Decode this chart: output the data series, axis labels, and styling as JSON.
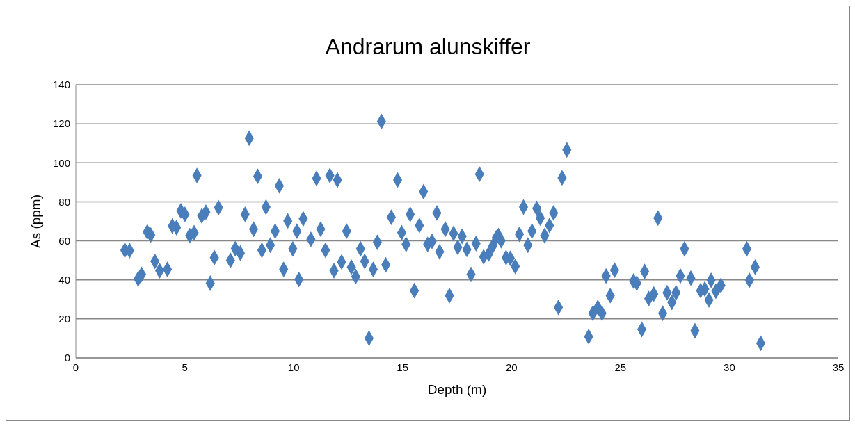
{
  "chart_data": {
    "type": "scatter",
    "title": "Andrarum alunskiffer",
    "xlabel": "Depth (m)",
    "ylabel": "As (ppm)",
    "x": [
      2.25,
      2.47,
      2.86,
      3.02,
      3.28,
      3.44,
      3.63,
      3.85,
      4.2,
      4.43,
      4.62,
      4.82,
      5.01,
      5.23,
      5.43,
      5.56,
      5.78,
      5.97,
      6.17,
      6.36,
      6.55,
      7.1,
      7.32,
      7.55,
      7.77,
      7.96,
      8.16,
      8.35,
      8.54,
      8.73,
      8.93,
      9.15,
      9.34,
      9.54,
      9.73,
      9.96,
      10.15,
      10.24,
      10.44,
      10.79,
      11.05,
      11.24,
      11.46,
      11.66,
      11.85,
      12.01,
      12.2,
      12.43,
      12.65,
      12.85,
      13.07,
      13.26,
      13.46,
      13.65,
      13.84,
      14.03,
      14.23,
      14.48,
      14.77,
      14.96,
      15.16,
      15.35,
      15.54,
      15.77,
      15.96,
      16.15,
      16.35,
      16.57,
      16.7,
      16.96,
      17.15,
      17.34,
      17.53,
      17.73,
      17.95,
      18.14,
      18.37,
      18.53,
      18.72,
      18.95,
      19.14,
      19.3,
      19.4,
      19.52,
      19.75,
      19.94,
      20.17,
      20.36,
      20.55,
      20.75,
      20.94,
      21.16,
      21.32,
      21.52,
      21.74,
      21.93,
      22.15,
      22.32,
      22.54,
      23.54,
      23.73,
      23.96,
      24.15,
      24.34,
      24.53,
      24.73,
      25.6,
      25.75,
      25.98,
      26.11,
      26.3,
      26.53,
      26.72,
      26.94,
      27.14,
      27.36,
      27.55,
      27.75,
      27.94,
      28.23,
      28.42,
      28.68,
      28.87,
      29.06,
      29.16,
      29.38,
      29.61,
      30.8,
      30.92,
      31.18,
      31.44
    ],
    "series": [
      {
        "color": "#4a7ebb",
        "values": [
          55.2,
          55,
          40.5,
          42.8,
          64.6,
          63,
          49.5,
          44.7,
          45.4,
          67.6,
          66.8,
          75.4,
          73.6,
          62.7,
          64.2,
          93.5,
          72.8,
          74.7,
          38.3,
          51.4,
          77,
          50,
          56,
          53.7,
          73.6,
          112.6,
          66,
          93.1,
          55.2,
          77.3,
          57.8,
          65,
          88.2,
          45.4,
          70.2,
          55.9,
          65,
          40.2,
          71.3,
          60.8,
          92,
          66,
          55.2,
          93.5,
          44.7,
          91.2,
          49.2,
          65,
          46.5,
          41.7,
          55.9,
          49.5,
          10.1,
          45.4,
          59.3,
          121.2,
          47.7,
          72.1,
          91.2,
          64.2,
          58.2,
          73.6,
          34.5,
          67.9,
          85.2,
          58.2,
          59.7,
          74.3,
          54.4,
          66,
          31.9,
          63.8,
          56.7,
          62.3,
          55.6,
          42.8,
          58.6,
          94.2,
          51.8,
          53.3,
          57.4,
          61.6,
          62.7,
          60.1,
          51.4,
          51.1,
          46.9,
          63.4,
          77.3,
          57.8,
          65,
          76.6,
          71.7,
          62.7,
          67.9,
          74.3,
          25.9,
          92.3,
          106.6,
          10.9,
          22.9,
          25.9,
          22.9,
          42,
          31.9,
          45,
          39.4,
          38.3,
          14.6,
          44.3,
          30.4,
          32.7,
          71.7,
          22.9,
          33.4,
          28.5,
          33.4,
          42,
          55.9,
          40.9,
          13.9,
          34.5,
          35.3,
          29.7,
          39.8,
          34.2,
          37.2,
          55.9,
          39.8,
          46.5,
          7.5
        ]
      }
    ],
    "xlim": [
      0,
      35
    ],
    "xticks": [
      0,
      5,
      10,
      15,
      20,
      25,
      30,
      35
    ],
    "ylim": [
      0,
      140
    ],
    "yticks": [
      0,
      20,
      40,
      60,
      80,
      100,
      120,
      140
    ],
    "grid": "y",
    "marker": "diamond",
    "legend": false
  }
}
